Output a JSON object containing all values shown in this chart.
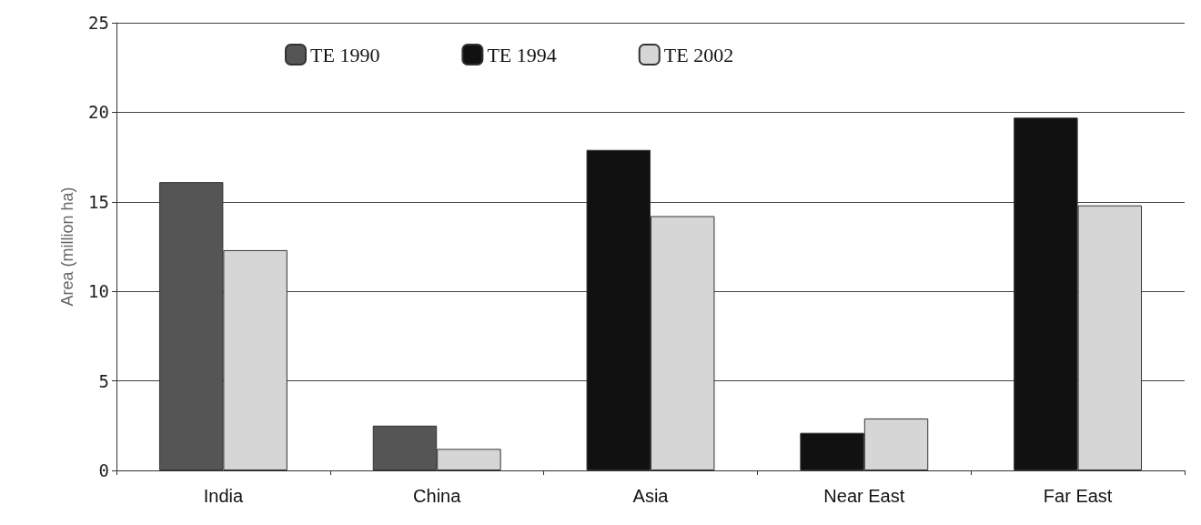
{
  "chart_data": {
    "type": "bar",
    "ylabel": "Area (million ha)",
    "categories": [
      "India",
      "China",
      "Asia",
      "Near East",
      "Far East"
    ],
    "series": [
      {
        "name": "TE 1990",
        "color": "#555555",
        "values": [
          16.1,
          2.5,
          null,
          null,
          null
        ]
      },
      {
        "name": "TE 1994",
        "color": "#111111",
        "values": [
          null,
          null,
          17.9,
          2.1,
          19.7
        ]
      },
      {
        "name": "TE 2002",
        "color": "#d6d6d6",
        "values": [
          12.3,
          1.2,
          14.2,
          2.9,
          14.8
        ]
      }
    ],
    "ylim": [
      0,
      25
    ],
    "yticks": [
      0,
      5,
      10,
      15,
      20,
      25
    ],
    "grid": "y",
    "legend": "top"
  }
}
